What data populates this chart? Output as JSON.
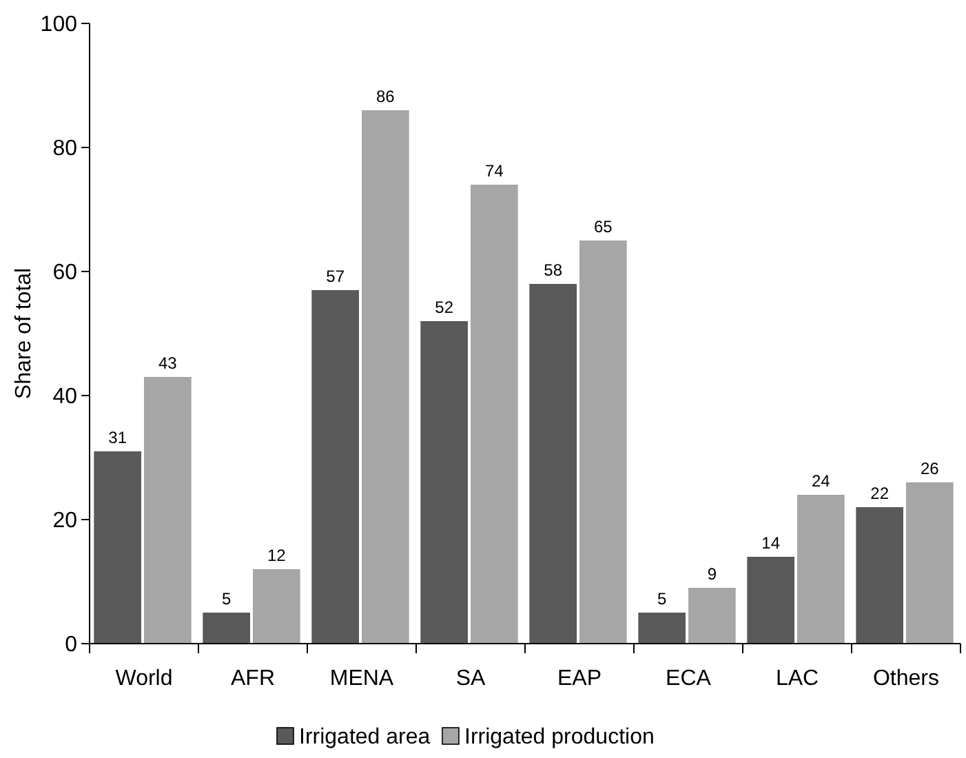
{
  "chart_data": {
    "type": "bar",
    "ylabel": "Share of total",
    "categories": [
      "World",
      "AFR",
      "MENA",
      "SA",
      "EAP",
      "ECA",
      "LAC",
      "Others"
    ],
    "series": [
      {
        "name": "Irrigated area",
        "color": "#595959",
        "values": [
          31,
          5,
          57,
          52,
          58,
          5,
          14,
          22
        ]
      },
      {
        "name": "Irrigated production",
        "color": "#a6a6a6",
        "values": [
          43,
          12,
          86,
          74,
          65,
          9,
          24,
          26
        ]
      }
    ],
    "ylim": [
      0,
      100
    ],
    "yticks": [
      0,
      20,
      40,
      60,
      80,
      100
    ],
    "data_labels": true,
    "legend": "bottom",
    "grid": false
  }
}
